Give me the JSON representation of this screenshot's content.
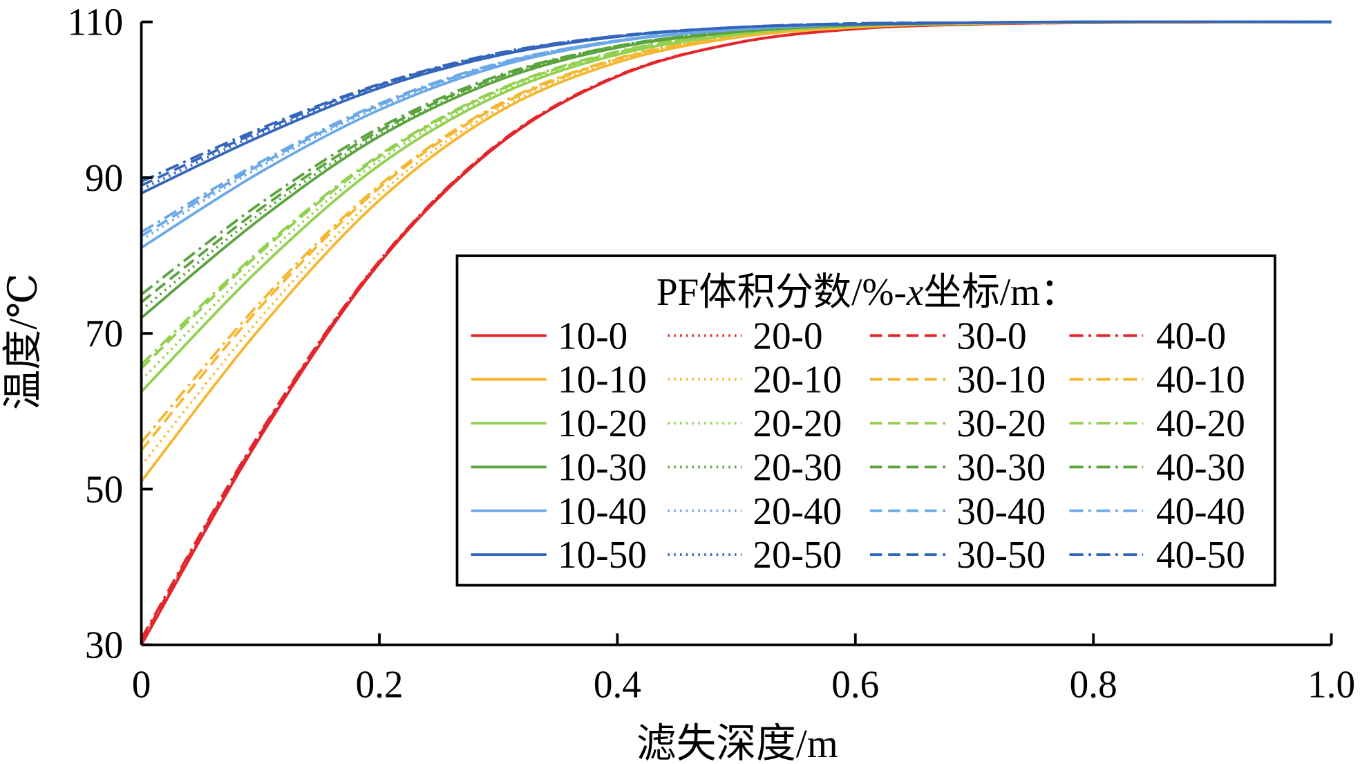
{
  "chart_data": {
    "type": "line",
    "title": "",
    "xlabel": "滤失深度/m",
    "ylabel": "温度/℃",
    "xlim": [
      0,
      1.0
    ],
    "ylim": [
      30,
      110
    ],
    "xticks": [
      "0",
      "0.2",
      "0.4",
      "0.6",
      "0.8",
      "1.0"
    ],
    "xtick_values": [
      0,
      0.2,
      0.4,
      0.6,
      0.8,
      1.0
    ],
    "yticks": [
      "30",
      "50",
      "70",
      "90",
      "110"
    ],
    "ytick_values": [
      30,
      50,
      70,
      90,
      110
    ],
    "grid": false,
    "legend": {
      "placement": "center-right",
      "title_parts": [
        "PF体积分数/%-",
        "x",
        "坐标/m："
      ]
    },
    "x": [
      0,
      0.1,
      0.2,
      0.3,
      0.4,
      0.5,
      0.6,
      0.7,
      0.8,
      1.0
    ],
    "colors": {
      "0": "#e3262b",
      "10": "#f5b731",
      "20": "#92d050",
      "30": "#5aa33d",
      "40": "#6aa8e8",
      "50": "#3366bb"
    },
    "styles": {
      "10": "solid",
      "20": "dotted",
      "30": "dashed",
      "40": "dashdot"
    },
    "series": [
      {
        "name": "10-0",
        "values": [
          30,
          56.7,
          79.0,
          94.2,
          103.0,
          107.3,
          109.1,
          109.7,
          109.9,
          110
        ]
      },
      {
        "name": "20-0",
        "values": [
          30.2,
          56.9,
          79.0,
          94.3,
          103.0,
          107.3,
          109.1,
          109.7,
          109.9,
          110
        ]
      },
      {
        "name": "30-0",
        "values": [
          30.5,
          57.1,
          79.2,
          94.3,
          103.0,
          107.3,
          109.1,
          109.7,
          109.9,
          110
        ]
      },
      {
        "name": "40-0",
        "values": [
          30.8,
          57.3,
          79.3,
          94.4,
          103.1,
          107.3,
          109.1,
          109.7,
          109.9,
          110
        ]
      },
      {
        "name": "10-10",
        "values": [
          51,
          70.7,
          87.1,
          98.4,
          104.8,
          108.0,
          109.3,
          109.8,
          109.9,
          110
        ]
      },
      {
        "name": "20-10",
        "values": [
          53,
          72.0,
          87.9,
          98.8,
          105.0,
          108.1,
          109.3,
          109.8,
          109.9,
          110
        ]
      },
      {
        "name": "30-10",
        "values": [
          55,
          73.4,
          88.7,
          99.2,
          105.2,
          108.1,
          109.4,
          109.8,
          110,
          110
        ]
      },
      {
        "name": "40-10",
        "values": [
          56,
          74.0,
          89.0,
          99.4,
          105.3,
          108.2,
          109.4,
          109.8,
          110,
          110
        ]
      },
      {
        "name": "10-20",
        "values": [
          62.5,
          78.4,
          91.6,
          100.6,
          105.8,
          108.4,
          109.5,
          109.8,
          110,
          110
        ]
      },
      {
        "name": "20-20",
        "values": [
          64,
          79.4,
          92.2,
          100.9,
          106.0,
          108.4,
          109.5,
          109.8,
          110,
          110
        ]
      },
      {
        "name": "30-20",
        "values": [
          65.5,
          80.4,
          92.7,
          101.2,
          106.1,
          108.5,
          109.5,
          109.8,
          110,
          110
        ]
      },
      {
        "name": "40-20",
        "values": [
          66,
          80.7,
          92.9,
          101.3,
          106.2,
          108.5,
          109.5,
          109.9,
          110,
          110
        ]
      },
      {
        "name": "10-30",
        "values": [
          72,
          84.7,
          95.3,
          102.5,
          106.7,
          108.7,
          109.6,
          109.9,
          110,
          110
        ]
      },
      {
        "name": "20-30",
        "values": [
          73,
          85.4,
          95.6,
          102.7,
          106.8,
          108.7,
          109.6,
          109.9,
          110,
          110
        ]
      },
      {
        "name": "30-30",
        "values": [
          74,
          86.0,
          96.0,
          102.9,
          106.9,
          108.8,
          109.6,
          109.9,
          110,
          110
        ]
      },
      {
        "name": "40-30",
        "values": [
          75,
          86.7,
          96.4,
          103.1,
          106.9,
          108.8,
          109.6,
          109.9,
          110,
          110
        ]
      },
      {
        "name": "10-40",
        "values": [
          81,
          90.7,
          98.7,
          104.3,
          107.5,
          109.0,
          109.7,
          109.9,
          110,
          110
        ]
      },
      {
        "name": "20-40",
        "values": [
          82,
          91.4,
          99.1,
          104.5,
          107.6,
          109.0,
          109.7,
          109.9,
          110,
          110
        ]
      },
      {
        "name": "30-40",
        "values": [
          82.5,
          91.7,
          99.3,
          104.6,
          107.6,
          109.1,
          109.7,
          109.9,
          110,
          110
        ]
      },
      {
        "name": "40-40",
        "values": [
          83,
          92.0,
          99.5,
          104.7,
          107.6,
          109.1,
          109.7,
          109.9,
          110,
          110
        ]
      },
      {
        "name": "10-50",
        "values": [
          88,
          95.3,
          101.5,
          105.7,
          108.1,
          109.3,
          109.7,
          109.9,
          110,
          110
        ]
      },
      {
        "name": "20-50",
        "values": [
          88.5,
          95.7,
          101.7,
          105.8,
          108.1,
          109.3,
          109.8,
          109.9,
          110,
          110
        ]
      },
      {
        "name": "30-50",
        "values": [
          89,
          96.0,
          101.9,
          105.9,
          108.2,
          109.3,
          109.8,
          109.9,
          110,
          110
        ]
      },
      {
        "name": "40-50",
        "values": [
          89.5,
          96.3,
          102.0,
          106.0,
          108.2,
          109.3,
          109.8,
          109.9,
          110,
          110
        ]
      }
    ]
  }
}
